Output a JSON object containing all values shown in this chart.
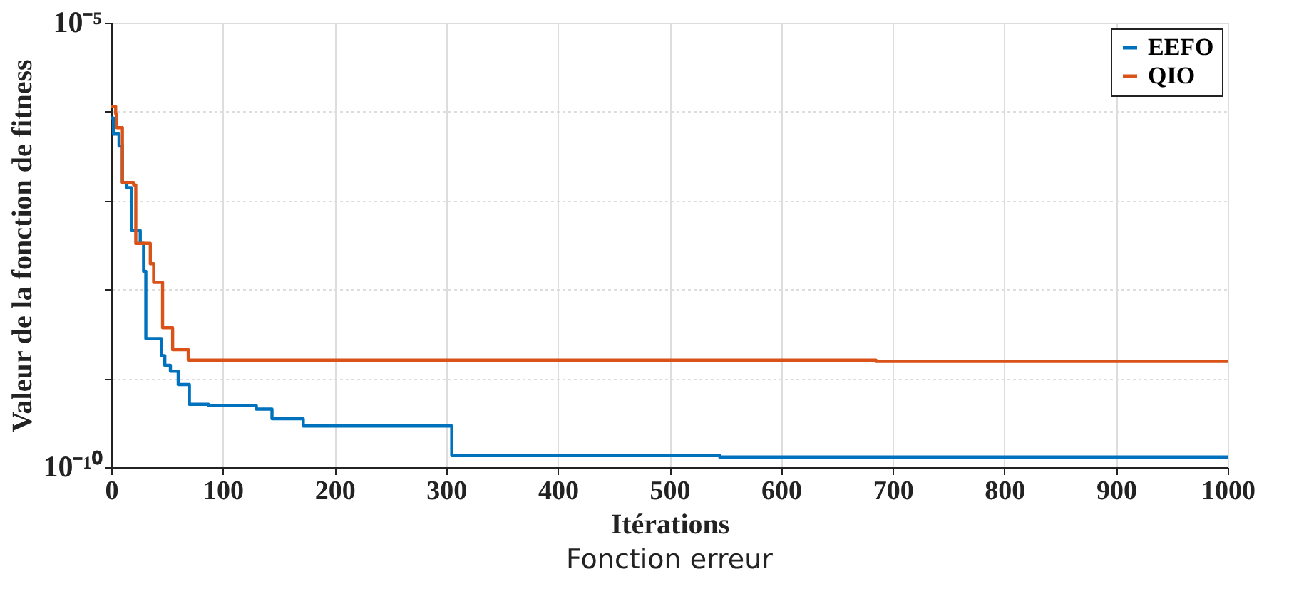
{
  "chart_data": {
    "type": "step",
    "xlabel": "Itérations",
    "ylabel": "Valeur de la fonction de fitness",
    "annotations": [
      "Fonction erreur"
    ],
    "log": true,
    "grid": true,
    "legend": "top right",
    "xlim": [
      0,
      1000
    ],
    "xticks": [
      0,
      100,
      200,
      300,
      400,
      500,
      600,
      700,
      800,
      900,
      1000
    ],
    "ylim": [
      1e-10,
      1e-05
    ],
    "yticks": [
      {
        "value": 1e-10,
        "label": "10⁻¹⁰"
      },
      {
        "value": 1e-09,
        "label": null
      },
      {
        "value": 1e-08,
        "label": null
      },
      {
        "value": 1e-07,
        "label": null
      },
      {
        "value": 1e-06,
        "label": null
      },
      {
        "value": 1e-05,
        "label": "10⁻⁵"
      }
    ],
    "series": [
      {
        "name": "EEFO",
        "color": "#0072bd",
        "x": [
          0,
          2,
          7,
          10,
          14,
          18,
          26,
          29,
          31,
          45,
          48,
          53,
          60,
          70,
          87,
          130,
          144,
          172,
          305,
          545,
          1000
        ],
        "values": [
          8.5e-07,
          5.6e-07,
          4.1e-07,
          1.6e-07,
          1.4e-07,
          4.6e-08,
          3.3e-08,
          1.6e-08,
          2.8e-09,
          1.8e-09,
          1.4e-09,
          1.2e-09,
          8.5e-10,
          5.1e-10,
          4.9e-10,
          4.5e-10,
          3.5e-10,
          2.9e-10,
          1.35e-10,
          1.3e-10,
          1.3e-10
        ]
      },
      {
        "name": "QIO",
        "color": "#d95319",
        "x": [
          0,
          4,
          5,
          10,
          20,
          22,
          35,
          38,
          46,
          55,
          69,
          685,
          1000
        ],
        "values": [
          1.15e-06,
          9.5e-07,
          6.6e-07,
          1.6e-07,
          1.5e-07,
          3.3e-08,
          1.95e-08,
          1.2e-08,
          3.7e-09,
          2.1e-09,
          1.6e-09,
          1.55e-09,
          1.55e-09
        ]
      }
    ]
  }
}
